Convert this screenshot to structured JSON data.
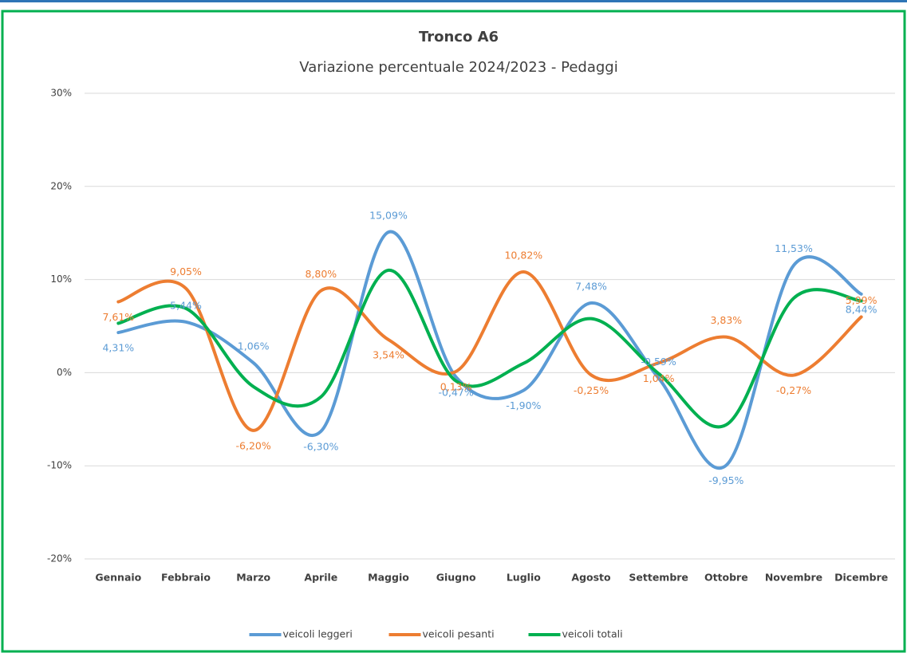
{
  "chart_data": {
    "type": "line",
    "title": "Tronco A6",
    "subtitle": "Variazione percentuale 2024/2023 - Pedaggi",
    "categories": [
      "Gennaio",
      "Febbraio",
      "Marzo",
      "Aprile",
      "Maggio",
      "Giugno",
      "Luglio",
      "Agosto",
      "Settembre",
      "Ottobre",
      "Novembre",
      "Dicembre"
    ],
    "ylim": [
      -20,
      30
    ],
    "yticks": [
      {
        "value": -20,
        "label": "-20%"
      },
      {
        "value": -10,
        "label": "-10%"
      },
      {
        "value": 0,
        "label": "0%"
      },
      {
        "value": 10,
        "label": "10%"
      },
      {
        "value": 20,
        "label": "20%"
      },
      {
        "value": 30,
        "label": "30%"
      }
    ],
    "grid": true,
    "smooth": true,
    "legend": "bottom",
    "series": [
      {
        "name": "veicoli leggeri",
        "color": "#5b9bd5",
        "values": [
          4.31,
          5.44,
          1.06,
          -6.3,
          15.09,
          -0.47,
          -1.9,
          7.48,
          -0.59,
          -9.95,
          11.53,
          8.44
        ],
        "value_labels": [
          "4,31%",
          "5,44%",
          "1,06%",
          "-6,30%",
          "15,09%",
          "-0,47%",
          "-1,90%",
          "7,48%",
          "-0,59%",
          "-9,95%",
          "11,53%",
          "8,44%"
        ]
      },
      {
        "name": "veicoli pesanti",
        "color": "#ed7d31",
        "values": [
          7.61,
          9.05,
          -6.2,
          8.8,
          3.54,
          0.13,
          10.82,
          -0.25,
          1.04,
          3.83,
          -0.27,
          5.99
        ],
        "value_labels": [
          "7,61%",
          "9,05%",
          "-6,20%",
          "8,80%",
          "3,54%",
          "0,13%",
          "10,82%",
          "-0,25%",
          "1,04%",
          "3,83%",
          "-0,27%",
          "5,99%"
        ]
      },
      {
        "name": "veicoli totali",
        "color": "#00b050",
        "values": [
          5.3,
          6.9,
          -1.5,
          -2.6,
          11.0,
          -0.9,
          1.0,
          5.8,
          -0.1,
          -5.6,
          8.0,
          7.7
        ]
      }
    ]
  }
}
